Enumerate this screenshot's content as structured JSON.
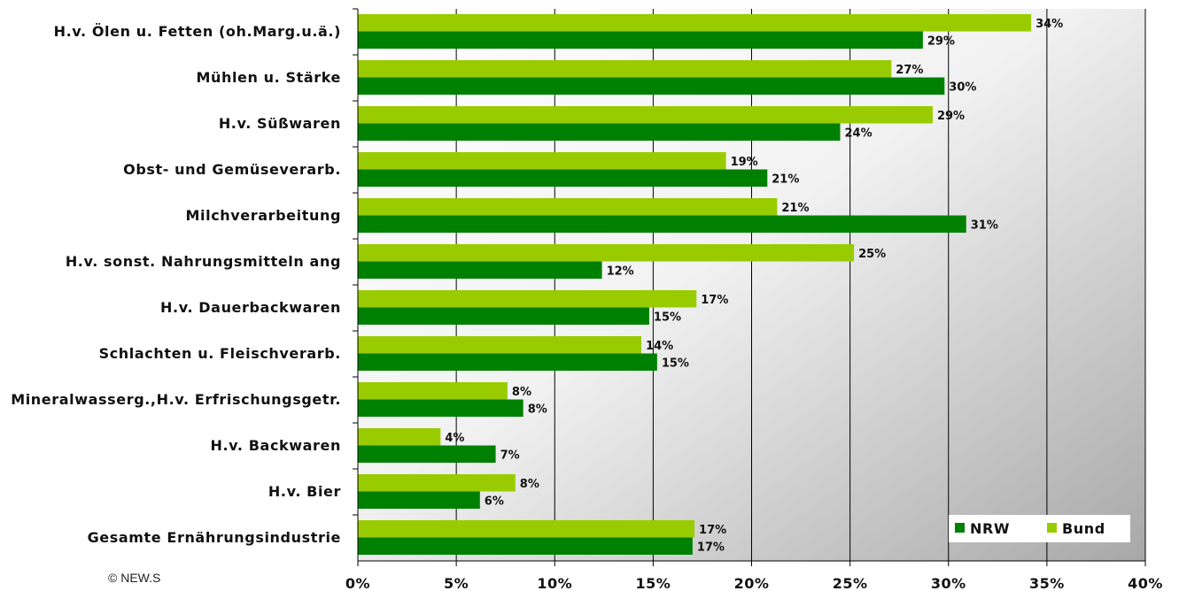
{
  "copyright": "© NEW.S",
  "colors": {
    "nrw": "#008000",
    "bund": "#99cc00"
  },
  "chart_data": {
    "type": "bar",
    "orientation": "horizontal",
    "categories": [
      "H.v. Ölen u. Fetten (oh.Marg.u.ä.)",
      "Mühlen u. Stärke",
      "H.v. Süßwaren",
      "Obst- und Gemüseverarb.",
      "Milchverarbeitung",
      "H.v. sonst. Nahrungsmitteln ang",
      "H.v. Dauerbackwaren",
      "Schlachten u. Fleischverarb.",
      "Mineralwasserg.,H.v. Erfrischungsgetr.",
      "H.v. Backwaren",
      "H.v. Bier",
      "Gesamte Ernährungsindustrie"
    ],
    "series": [
      {
        "name": "Bund",
        "values": [
          34.2,
          27.1,
          29.2,
          18.7,
          21.3,
          25.2,
          17.2,
          14.4,
          7.6,
          4.2,
          8.0,
          17.1
        ],
        "labels": [
          "34%",
          "27%",
          "29%",
          "19%",
          "21%",
          "25%",
          "17%",
          "14%",
          "8%",
          "4%",
          "8%",
          "17%"
        ]
      },
      {
        "name": "NRW",
        "values": [
          28.7,
          29.8,
          24.5,
          20.8,
          30.9,
          12.4,
          14.8,
          15.2,
          8.4,
          7.0,
          6.2,
          17.0
        ],
        "labels": [
          "29%",
          "30%",
          "24%",
          "21%",
          "31%",
          "12%",
          "15%",
          "15%",
          "8%",
          "7%",
          "6%",
          "17%"
        ]
      }
    ],
    "xlim": [
      0,
      40
    ],
    "xticks": [
      0,
      5,
      10,
      15,
      20,
      25,
      30,
      35,
      40
    ],
    "xtick_labels": [
      "0%",
      "5%",
      "10%",
      "15%",
      "20%",
      "25%",
      "30%",
      "35%",
      "40%"
    ],
    "grid": true,
    "legend": {
      "position": "bottom-right",
      "entries": [
        "NRW",
        "Bund"
      ]
    }
  }
}
